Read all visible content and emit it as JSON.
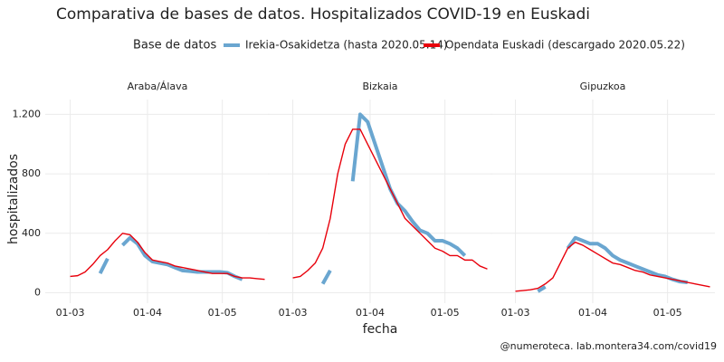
{
  "title": "Comparativa de bases de datos. Hospitalizados COVID-19 en Euskadi",
  "legend_title": "Base de datos",
  "xlabel": "fecha",
  "ylabel": "hospitalizados",
  "caption": "@numeroteca. lab.montera34.com/covid19",
  "chart_data": [
    {
      "type": "line",
      "title": "Araba/Álava",
      "x": [
        "03-01",
        "03-04",
        "03-07",
        "03-10",
        "03-13",
        "03-16",
        "03-19",
        "03-22",
        "03-25",
        "03-28",
        "03-31",
        "04-03",
        "04-06",
        "04-09",
        "04-12",
        "04-15",
        "04-18",
        "04-21",
        "04-24",
        "04-27",
        "04-30",
        "05-03",
        "05-06",
        "05-09",
        "05-12",
        "05-15",
        "05-18"
      ],
      "xlim": [
        "02-20",
        "05-20"
      ],
      "xticks": [
        {
          "value": "03-01",
          "label": "01-03"
        },
        {
          "value": "04-01",
          "label": "01-04"
        },
        {
          "value": "05-01",
          "label": "01-05"
        }
      ],
      "ylim": [
        -70,
        1300
      ],
      "yticks": [
        0,
        400,
        800,
        {
          "value": 1200,
          "label": "1.200"
        }
      ],
      "grid": true,
      "series": [
        {
          "name": "Irekia-Osakidetza (hasta 2020.05.14)",
          "color": "#6aa6d0",
          "values": [
            null,
            null,
            null,
            null,
            130,
            230,
            null,
            320,
            370,
            330,
            250,
            210,
            200,
            190,
            170,
            150,
            145,
            140,
            140,
            140,
            140,
            135,
            110,
            90,
            null,
            null,
            null
          ]
        },
        {
          "name": "Opendata Euskadi (descargado 2020.05.22)",
          "color": "#e8000b",
          "values": [
            110,
            115,
            140,
            190,
            250,
            290,
            350,
            400,
            390,
            340,
            270,
            220,
            210,
            200,
            180,
            170,
            160,
            150,
            140,
            130,
            130,
            130,
            110,
            100,
            100,
            95,
            90
          ]
        }
      ]
    },
    {
      "type": "line",
      "title": "Bizkaia",
      "x": [
        "03-01",
        "03-04",
        "03-07",
        "03-10",
        "03-13",
        "03-16",
        "03-19",
        "03-22",
        "03-25",
        "03-28",
        "03-31",
        "04-03",
        "04-06",
        "04-09",
        "04-12",
        "04-15",
        "04-18",
        "04-21",
        "04-24",
        "04-27",
        "04-30",
        "05-03",
        "05-06",
        "05-09",
        "05-12",
        "05-15",
        "05-18"
      ],
      "xlim": [
        "02-20",
        "05-20"
      ],
      "xticks": [
        {
          "value": "03-01",
          "label": "01-03"
        },
        {
          "value": "04-01",
          "label": "01-04"
        },
        {
          "value": "05-01",
          "label": "01-05"
        }
      ],
      "ylim": [
        -70,
        1300
      ],
      "yticks": [
        0,
        400,
        800,
        1200
      ],
      "grid": true,
      "series": [
        {
          "name": "Irekia-Osakidetza (hasta 2020.05.14)",
          "color": "#6aa6d0",
          "values": [
            null,
            null,
            null,
            null,
            60,
            150,
            null,
            null,
            750,
            1200,
            1150,
            1000,
            850,
            700,
            600,
            550,
            480,
            420,
            400,
            350,
            350,
            330,
            300,
            250,
            null,
            null,
            null
          ]
        },
        {
          "name": "Opendata Euskadi (descargado 2020.05.22)",
          "color": "#e8000b",
          "values": [
            100,
            110,
            150,
            200,
            300,
            500,
            800,
            1000,
            1100,
            1100,
            1000,
            900,
            800,
            700,
            600,
            500,
            450,
            400,
            350,
            300,
            280,
            250,
            250,
            220,
            220,
            180,
            160
          ]
        }
      ]
    },
    {
      "type": "line",
      "title": "Gipuzkoa",
      "x": [
        "03-01",
        "03-04",
        "03-07",
        "03-10",
        "03-13",
        "03-16",
        "03-19",
        "03-22",
        "03-25",
        "03-28",
        "03-31",
        "04-03",
        "04-06",
        "04-09",
        "04-12",
        "04-15",
        "04-18",
        "04-21",
        "04-24",
        "04-27",
        "04-30",
        "05-03",
        "05-06",
        "05-09",
        "05-12",
        "05-15",
        "05-18"
      ],
      "xlim": [
        "02-20",
        "05-20"
      ],
      "xticks": [
        {
          "value": "03-01",
          "label": "01-03"
        },
        {
          "value": "04-01",
          "label": "01-04"
        },
        {
          "value": "05-01",
          "label": "01-05"
        }
      ],
      "ylim": [
        -70,
        1300
      ],
      "yticks": [
        0,
        400,
        800,
        1200
      ],
      "grid": true,
      "series": [
        {
          "name": "Irekia-Osakidetza (hasta 2020.05.14)",
          "color": "#6aa6d0",
          "values": [
            null,
            null,
            null,
            10,
            40,
            null,
            null,
            300,
            370,
            350,
            330,
            330,
            300,
            250,
            220,
            200,
            180,
            160,
            140,
            120,
            110,
            90,
            75,
            70,
            null,
            null,
            null
          ]
        },
        {
          "name": "Opendata Euskadi (descargado 2020.05.22)",
          "color": "#e8000b",
          "values": [
            10,
            15,
            20,
            30,
            60,
            100,
            200,
            300,
            340,
            320,
            290,
            260,
            230,
            200,
            190,
            170,
            150,
            140,
            120,
            110,
            100,
            90,
            80,
            70,
            60,
            50,
            40
          ]
        }
      ]
    }
  ]
}
